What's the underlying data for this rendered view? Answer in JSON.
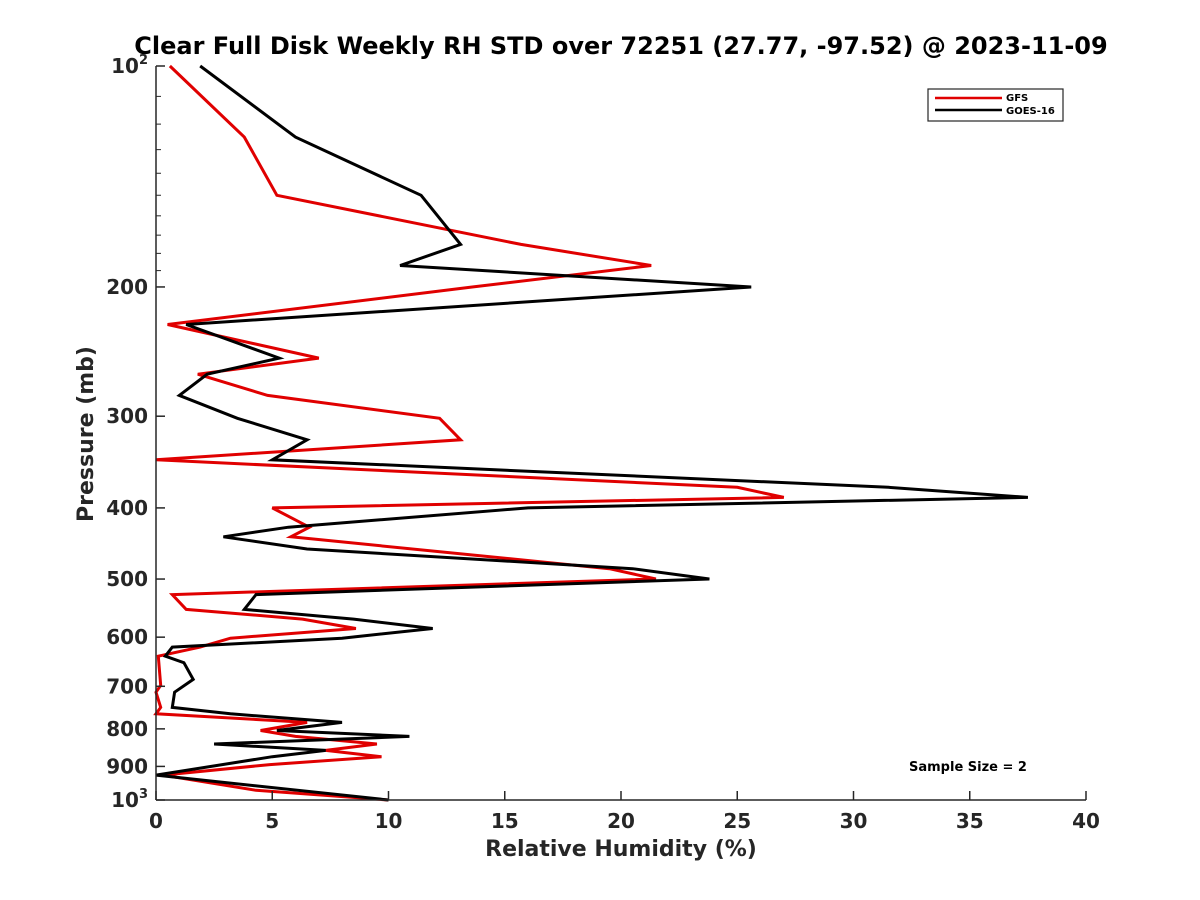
{
  "chart_data": {
    "type": "line",
    "title": "Clear Full Disk Weekly RH STD over 72251 (27.77, -97.52) @ 2023-11-09",
    "xlabel": "Relative Humidity (%)",
    "ylabel": "Pressure (mb)",
    "xlim": [
      0,
      40
    ],
    "ylim": [
      100,
      1000
    ],
    "y_scale": "log",
    "y_reversed": true,
    "x_ticks": [
      "0",
      "5",
      "10",
      "15",
      "20",
      "25",
      "30",
      "35",
      "40"
    ],
    "y_ticks": [
      {
        "value": 100,
        "base": "10",
        "exp": "2"
      },
      {
        "value": 200,
        "label": "200"
      },
      {
        "value": 300,
        "label": "300"
      },
      {
        "value": 400,
        "label": "400"
      },
      {
        "value": 500,
        "label": "500"
      },
      {
        "value": 600,
        "label": "600"
      },
      {
        "value": 700,
        "label": "700"
      },
      {
        "value": 800,
        "label": "800"
      },
      {
        "value": 900,
        "label": "900"
      },
      {
        "value": 1000,
        "base": "10",
        "exp": "3"
      }
    ],
    "legend_position": "top-right",
    "annotation": "Sample Size = 2",
    "series": [
      {
        "name": "GFS",
        "color": "#e00000",
        "points": [
          [
            0.6,
            100
          ],
          [
            3.8,
            125
          ],
          [
            5.2,
            150
          ],
          [
            15.7,
            175
          ],
          [
            21.3,
            187
          ],
          [
            13.6,
            200
          ],
          [
            0.5,
            225
          ],
          [
            7.0,
            250
          ],
          [
            1.8,
            263
          ],
          [
            4.8,
            281
          ],
          [
            12.2,
            302
          ],
          [
            13.1,
            323
          ],
          [
            0.0,
            344
          ],
          [
            25.0,
            375
          ],
          [
            27.0,
            387
          ],
          [
            5.0,
            400
          ],
          [
            6.6,
            425
          ],
          [
            5.8,
            438
          ],
          [
            19.5,
            484
          ],
          [
            21.5,
            500
          ],
          [
            0.7,
            525
          ],
          [
            1.3,
            550
          ],
          [
            6.3,
            567
          ],
          [
            8.6,
            584
          ],
          [
            3.2,
            602
          ],
          [
            1.9,
            619
          ],
          [
            0.1,
            637
          ],
          [
            0.2,
            698
          ],
          [
            0.0,
            713
          ],
          [
            0.2,
            748
          ],
          [
            0.0,
            763
          ],
          [
            6.5,
            784
          ],
          [
            4.5,
            804
          ],
          [
            6.0,
            819
          ],
          [
            9.5,
            839
          ],
          [
            7.3,
            856
          ],
          [
            9.7,
            873
          ],
          [
            4.9,
            895
          ],
          [
            0.3,
            925
          ],
          [
            4.3,
            970
          ],
          [
            10.0,
            1000
          ]
        ]
      },
      {
        "name": "GOES-16",
        "color": "#000000",
        "points": [
          [
            1.9,
            100
          ],
          [
            6.0,
            125
          ],
          [
            11.4,
            150
          ],
          [
            13.1,
            175
          ],
          [
            10.5,
            187
          ],
          [
            25.6,
            200
          ],
          [
            1.3,
            225
          ],
          [
            5.3,
            250
          ],
          [
            2.2,
            263
          ],
          [
            1.0,
            281
          ],
          [
            3.5,
            302
          ],
          [
            6.5,
            323
          ],
          [
            5.0,
            344
          ],
          [
            31.5,
            375
          ],
          [
            37.5,
            387
          ],
          [
            16.0,
            400
          ],
          [
            5.7,
            425
          ],
          [
            2.9,
            438
          ],
          [
            6.5,
            455
          ],
          [
            20.5,
            484
          ],
          [
            23.8,
            500
          ],
          [
            4.3,
            525
          ],
          [
            3.8,
            550
          ],
          [
            8.5,
            567
          ],
          [
            11.9,
            584
          ],
          [
            8.0,
            602
          ],
          [
            0.7,
            619
          ],
          [
            0.4,
            637
          ],
          [
            1.2,
            650
          ],
          [
            1.6,
            685
          ],
          [
            0.8,
            713
          ],
          [
            0.7,
            748
          ],
          [
            3.2,
            763
          ],
          [
            8.0,
            784
          ],
          [
            5.2,
            804
          ],
          [
            10.9,
            819
          ],
          [
            2.5,
            839
          ],
          [
            7.3,
            856
          ],
          [
            5.0,
            873
          ],
          [
            0.0,
            925
          ],
          [
            10.0,
            1000
          ]
        ]
      }
    ]
  }
}
